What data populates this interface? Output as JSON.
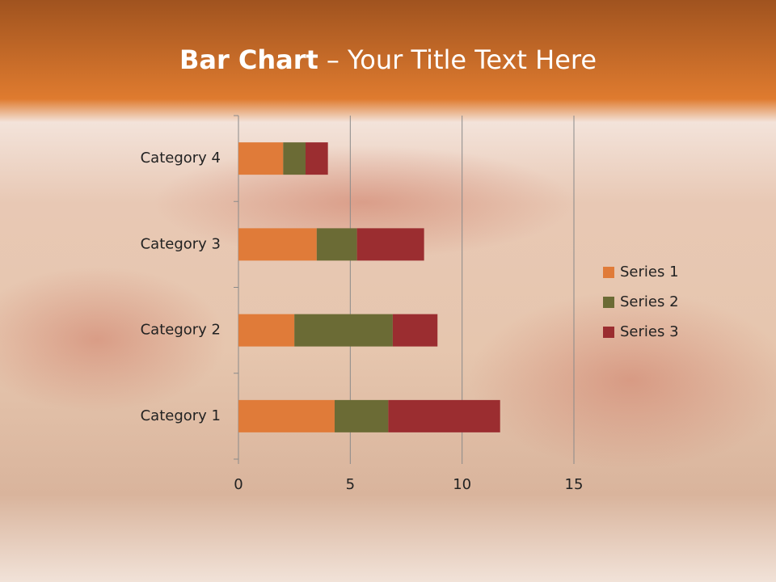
{
  "chart_data": {
    "type": "stacked-hbar",
    "title": [
      "Bar Chart",
      "– Your Title Text Here"
    ],
    "categories": [
      "Category 1",
      "Category 2",
      "Category 3",
      "Category 4"
    ],
    "series": [
      {
        "name": "Series 1",
        "color": "#e07b39",
        "values": [
          4.3,
          2.5,
          3.5,
          2
        ]
      },
      {
        "name": "Series 2",
        "color": "#6b6b35",
        "values": [
          2.4,
          4.4,
          1.8,
          1
        ]
      },
      {
        "name": "Series 3",
        "color": "#9b2d30",
        "values": [
          5,
          2,
          3,
          1
        ]
      }
    ],
    "xlim": [
      0,
      15
    ],
    "xticks": [
      0,
      5,
      10,
      15
    ],
    "grid": true,
    "legend": "right"
  }
}
